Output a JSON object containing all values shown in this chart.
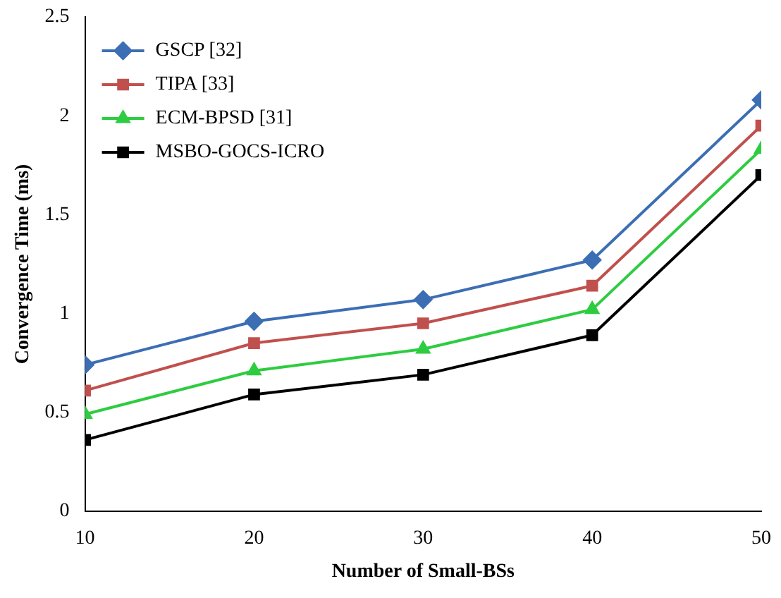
{
  "chart_data": {
    "type": "line",
    "xlabel": "Number of Small-BSs",
    "ylabel": "Convergence Time (ms)",
    "x": [
      10,
      20,
      30,
      40,
      50
    ],
    "xlim": [
      10,
      50
    ],
    "xticks": [
      10,
      20,
      30,
      40,
      50
    ],
    "ylim": [
      0,
      2.5
    ],
    "yticks": [
      0,
      0.5,
      1,
      1.5,
      2,
      2.5
    ],
    "grid": false,
    "legend": "top left",
    "line_style": "solid",
    "series": [
      {
        "name": "GSCP [32]",
        "color": "#3c6eb4",
        "marker": "diamond",
        "values": [
          0.74,
          0.96,
          1.07,
          1.27,
          2.08
        ]
      },
      {
        "name": "TIPA [33]",
        "color": "#c0504d",
        "marker": "square",
        "values": [
          0.61,
          0.85,
          0.95,
          1.14,
          1.95
        ]
      },
      {
        "name": "ECM-BPSD [31]",
        "color": "#2ecc40",
        "marker": "triangle",
        "values": [
          0.49,
          0.71,
          0.82,
          1.02,
          1.83
        ]
      },
      {
        "name": "MSBO-GOCS-ICRO",
        "color": "#000000",
        "marker": "square",
        "values": [
          0.36,
          0.59,
          0.69,
          0.89,
          1.7
        ]
      }
    ]
  }
}
